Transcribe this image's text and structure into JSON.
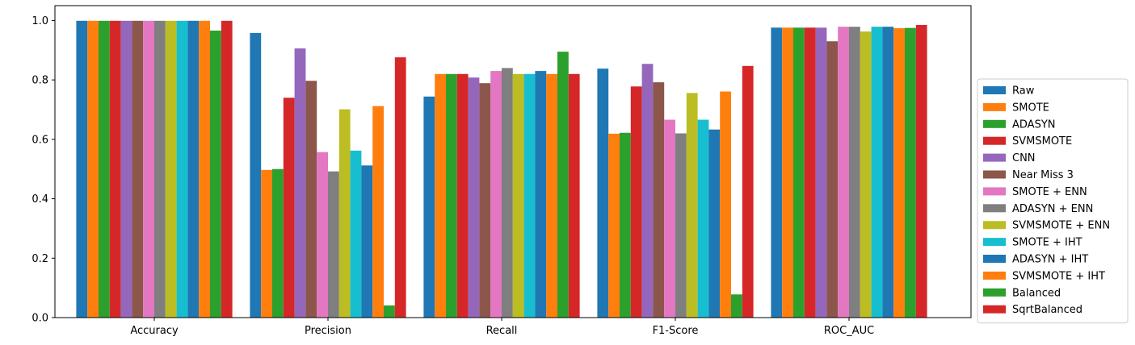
{
  "chart_data": {
    "type": "bar",
    "title": "",
    "xlabel": "",
    "ylabel": "",
    "categories": [
      "Accuracy",
      "Precision",
      "Recall",
      "F1-Score",
      "ROC_AUC"
    ],
    "ylim": [
      0,
      1.05
    ],
    "yticks": [
      "0.0",
      "0.2",
      "0.4",
      "0.6",
      "0.8",
      "1.0"
    ],
    "grid": false,
    "legend_position": "right",
    "series": [
      {
        "name": "Raw",
        "color": "#1f77b4",
        "values": [
          0.999,
          0.958,
          0.744,
          0.838,
          0.976
        ]
      },
      {
        "name": "SMOTE",
        "color": "#ff7f0e",
        "values": [
          0.999,
          0.497,
          0.82,
          0.619,
          0.976
        ]
      },
      {
        "name": "ADASYN",
        "color": "#2ca02c",
        "values": [
          0.999,
          0.5,
          0.82,
          0.622,
          0.976
        ]
      },
      {
        "name": "SVMSMOTE",
        "color": "#d62728",
        "values": [
          0.999,
          0.74,
          0.82,
          0.778,
          0.976
        ]
      },
      {
        "name": "CNN",
        "color": "#9467bd",
        "values": [
          0.999,
          0.906,
          0.808,
          0.854,
          0.976
        ]
      },
      {
        "name": "Near Miss 3",
        "color": "#8c564b",
        "values": [
          0.999,
          0.797,
          0.789,
          0.792,
          0.93
        ]
      },
      {
        "name": "SMOTE + ENN",
        "color": "#e377c2",
        "values": [
          0.999,
          0.557,
          0.83,
          0.666,
          0.979
        ]
      },
      {
        "name": "ADASYN + ENN",
        "color": "#7f7f7f",
        "values": [
          0.999,
          0.492,
          0.84,
          0.62,
          0.979
        ]
      },
      {
        "name": "SVMSMOTE + ENN",
        "color": "#bcbd22",
        "values": [
          0.999,
          0.701,
          0.82,
          0.756,
          0.963
        ]
      },
      {
        "name": "SMOTE + IHT",
        "color": "#17becf",
        "values": [
          0.999,
          0.562,
          0.82,
          0.666,
          0.979
        ]
      },
      {
        "name": "ADASYN + IHT",
        "color": "#1f77b4",
        "values": [
          0.999,
          0.512,
          0.83,
          0.633,
          0.979
        ]
      },
      {
        "name": "SVMSMOTE + IHT",
        "color": "#ff7f0e",
        "values": [
          0.999,
          0.712,
          0.82,
          0.761,
          0.974
        ]
      },
      {
        "name": "Balanced",
        "color": "#2ca02c",
        "values": [
          0.966,
          0.041,
          0.895,
          0.078,
          0.975
        ]
      },
      {
        "name": "SqrtBalanced",
        "color": "#d62728",
        "values": [
          0.999,
          0.876,
          0.82,
          0.847,
          0.985
        ]
      }
    ]
  }
}
